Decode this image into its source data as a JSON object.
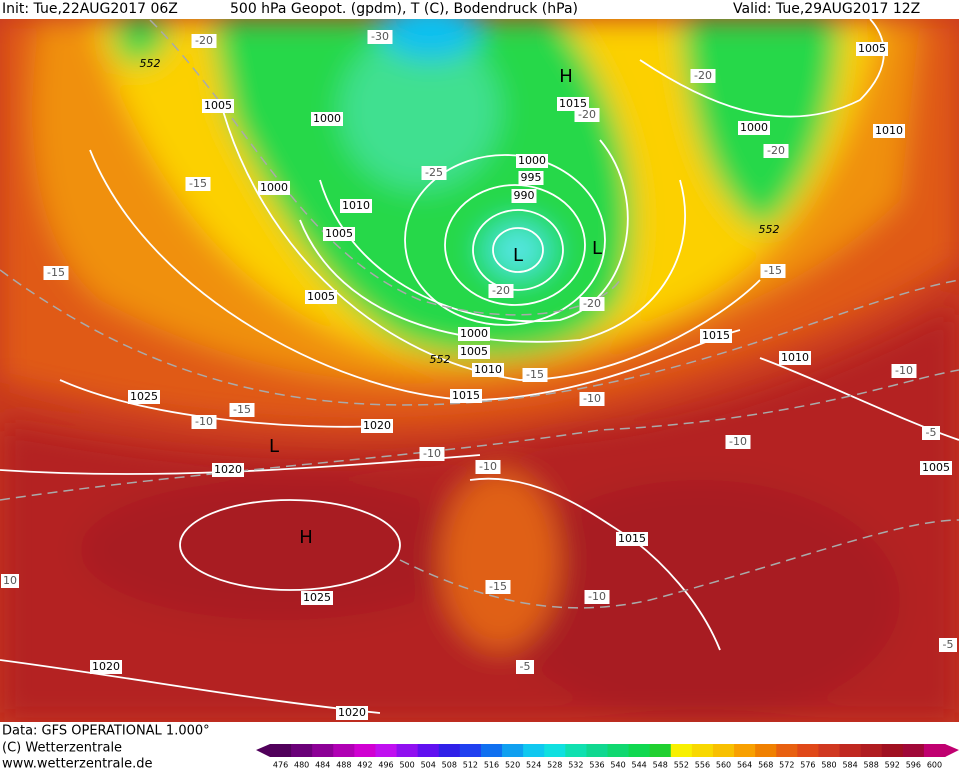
{
  "header": {
    "init": "Init: Tue,22AUG2017 06Z",
    "title": "500 hPa Geopot. (gpdm), T (C), Bodendruck (hPa)",
    "valid": "Valid: Tue,29AUG2017 12Z"
  },
  "footer": {
    "data": "Data: GFS OPERATIONAL 1.000°",
    "copyright": "(C) Wetterzentrale",
    "url": "www.wetterzentrale.de"
  },
  "colorbar": {
    "labels": [
      "476",
      "480",
      "484",
      "488",
      "492",
      "496",
      "500",
      "504",
      "508",
      "512",
      "516",
      "520",
      "524",
      "528",
      "532",
      "536",
      "540",
      "544",
      "548",
      "552",
      "556",
      "560",
      "564",
      "568",
      "572",
      "576",
      "580",
      "584",
      "588",
      "592",
      "596",
      "600"
    ]
  },
  "map": {
    "labels": [
      "1005",
      "1000",
      "1000",
      "1010",
      "1005",
      "1005",
      "1000",
      "995",
      "990",
      "1015",
      "1000",
      "1005",
      "1010",
      "1015",
      "1010",
      "1000",
      "1005",
      "1010",
      "1015",
      "1025",
      "1020",
      "1020",
      "1015",
      "1025",
      "1020",
      "1020",
      "1005",
      "-30",
      "-20",
      "-20",
      "-20",
      "-20",
      "-25",
      "-15",
      "-15",
      "-20",
      "-20",
      "-15",
      "-15",
      "-10",
      "-15",
      "-10",
      "-10",
      "-10",
      "-10",
      "-10",
      "-5",
      "-15",
      "-10",
      "-5",
      "-5",
      "10",
      "552",
      "552",
      "552",
      "H",
      "L",
      "L",
      "L",
      "H"
    ]
  }
}
